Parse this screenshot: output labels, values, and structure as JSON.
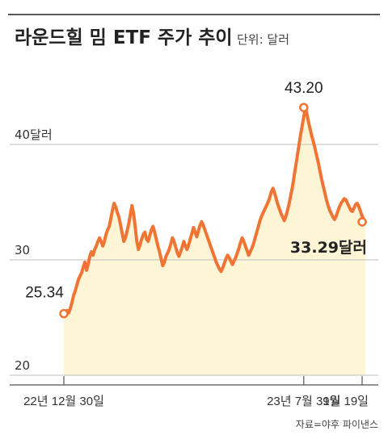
{
  "chart_data": {
    "type": "area",
    "title": "라운드힐 밈 ETF 주가 추이",
    "unit_label": "단위: 달러",
    "source": "자료=야후 파이낸스",
    "y_ticks": [
      {
        "value": 20,
        "label": "20"
      },
      {
        "value": 30,
        "label": "30"
      },
      {
        "value": 40,
        "label": "40달러"
      }
    ],
    "ylim": [
      20,
      47
    ],
    "x_ticks": [
      {
        "index": 0,
        "label": "22년 12월 30일"
      },
      {
        "index": 148,
        "label": "23년 7월 31일"
      },
      {
        "index": 184,
        "label": "9월 19일"
      }
    ],
    "annotations": [
      {
        "index": 0,
        "value": 25.34,
        "label": "25.34",
        "bold": false
      },
      {
        "index": 148,
        "value": 43.2,
        "label": "43.20",
        "bold": false
      },
      {
        "index": 184,
        "value": 33.29,
        "label": "33.29달러",
        "bold": true
      }
    ],
    "grid": true,
    "colors": {
      "line": "#f07535",
      "fill": "#fdf5d6",
      "grid": "#bdbdbd",
      "axis": "#555555"
    },
    "series": [
      {
        "values": [
          25.34,
          25.5,
          25.6,
          25.4,
          25.8,
          26.3,
          26.9,
          27.3,
          27.8,
          28.3,
          28.6,
          28.9,
          29.4,
          29.8,
          29.1,
          29.6,
          30.3,
          30.7,
          30.4,
          30.9,
          31.2,
          31.6,
          31.9,
          31.6,
          31.2,
          31.6,
          32.2,
          32.6,
          32.9,
          33.6,
          34.3,
          34.9,
          34.6,
          34.1,
          33.7,
          33.0,
          32.3,
          31.6,
          31.9,
          32.5,
          33.1,
          33.9,
          34.7,
          34.0,
          32.9,
          31.6,
          30.9,
          31.3,
          31.8,
          32.2,
          32.4,
          31.8,
          31.6,
          32.1,
          32.6,
          32.9,
          32.4,
          31.8,
          31.2,
          30.7,
          30.1,
          29.5,
          29.8,
          30.3,
          30.6,
          30.9,
          31.4,
          31.9,
          31.6,
          31.1,
          30.6,
          30.3,
          30.7,
          31.1,
          31.6,
          31.2,
          30.9,
          31.3,
          31.8,
          32.3,
          32.8,
          32.4,
          32.0,
          32.5,
          33.0,
          33.3,
          33.0,
          32.6,
          32.2,
          31.8,
          31.4,
          31.0,
          30.6,
          30.2,
          29.8,
          29.5,
          29.2,
          29.0,
          29.3,
          29.7,
          30.1,
          30.4,
          30.2,
          29.9,
          29.6,
          29.9,
          30.2,
          30.6,
          31.0,
          31.5,
          31.9,
          31.6,
          31.2,
          30.8,
          30.4,
          30.7,
          31.0,
          31.4,
          31.9,
          32.4,
          32.9,
          33.4,
          33.8,
          34.1,
          34.4,
          34.7,
          35.0,
          35.4,
          35.9,
          36.2,
          35.8,
          35.3,
          34.8,
          34.4,
          34.0,
          33.7,
          33.4,
          33.8,
          34.3,
          34.9,
          35.6,
          36.3,
          37.2,
          38.1,
          39.0,
          39.9,
          40.8,
          41.6,
          42.4,
          43.2,
          42.6,
          41.9,
          41.3,
          40.7,
          40.2,
          39.6,
          39.0,
          38.4,
          37.7,
          37.0,
          36.4,
          35.8,
          35.2,
          34.7,
          34.3,
          34.0,
          33.7,
          33.5,
          33.8,
          34.2,
          34.6,
          34.9,
          35.1,
          35.3,
          35.2,
          34.9,
          34.6,
          34.3,
          34.2,
          34.5,
          34.8,
          34.9,
          34.6,
          34.2,
          33.8,
          33.5,
          33.29
        ]
      }
    ]
  }
}
